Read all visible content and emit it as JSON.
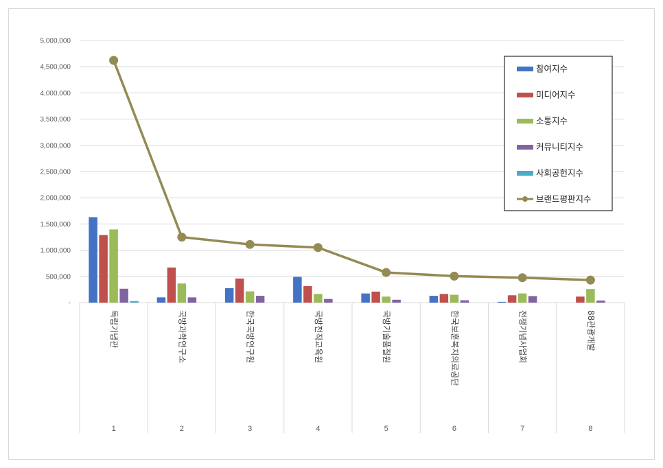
{
  "chart_data": {
    "type": "bar",
    "categories": [
      "독립기념관",
      "국방과학연구소",
      "한국국방연구원",
      "국방전직교육원",
      "국방기술품질원",
      "한국보훈복지의료공단",
      "전쟁기념사업회",
      "88관광개발"
    ],
    "indices": [
      "1",
      "2",
      "3",
      "4",
      "5",
      "6",
      "7",
      "8"
    ],
    "ylim": [
      0,
      5000000
    ],
    "yticks": [
      0,
      500000,
      1000000,
      1500000,
      2000000,
      2500000,
      3000000,
      3500000,
      4000000,
      4500000,
      5000000
    ],
    "ytick_labels": [
      "-",
      "500,000",
      "1,000,000",
      "1,500,000",
      "2,000,000",
      "2,500,000",
      "3,000,000",
      "3,500,000",
      "4,000,000",
      "4,500,000",
      "5,000,000"
    ],
    "grid": true,
    "legend_position": "top-right",
    "series": [
      {
        "name": "참여지수",
        "kind": "bar",
        "color": "#4472C4",
        "values": [
          1630000,
          100000,
          275000,
          490000,
          175000,
          130000,
          15000,
          0
        ]
      },
      {
        "name": "미디어지수",
        "kind": "bar",
        "color": "#C0504D",
        "values": [
          1290000,
          670000,
          460000,
          315000,
          210000,
          165000,
          140000,
          115000
        ]
      },
      {
        "name": "소통지수",
        "kind": "bar",
        "color": "#9BBB59",
        "values": [
          1395000,
          365000,
          215000,
          165000,
          115000,
          150000,
          175000,
          260000
        ]
      },
      {
        "name": "커뮤니티지수",
        "kind": "bar",
        "color": "#8064A2",
        "values": [
          265000,
          100000,
          130000,
          70000,
          55000,
          45000,
          125000,
          40000
        ]
      },
      {
        "name": "사회공헌지수",
        "kind": "bar",
        "color": "#4BACC6",
        "values": [
          30000,
          0,
          0,
          0,
          0,
          0,
          0,
          0
        ]
      },
      {
        "name": "브랜드평판지수",
        "kind": "line",
        "color": "#948A54",
        "values": [
          4620000,
          1250000,
          1110000,
          1050000,
          575000,
          505000,
          475000,
          430000
        ]
      }
    ]
  }
}
